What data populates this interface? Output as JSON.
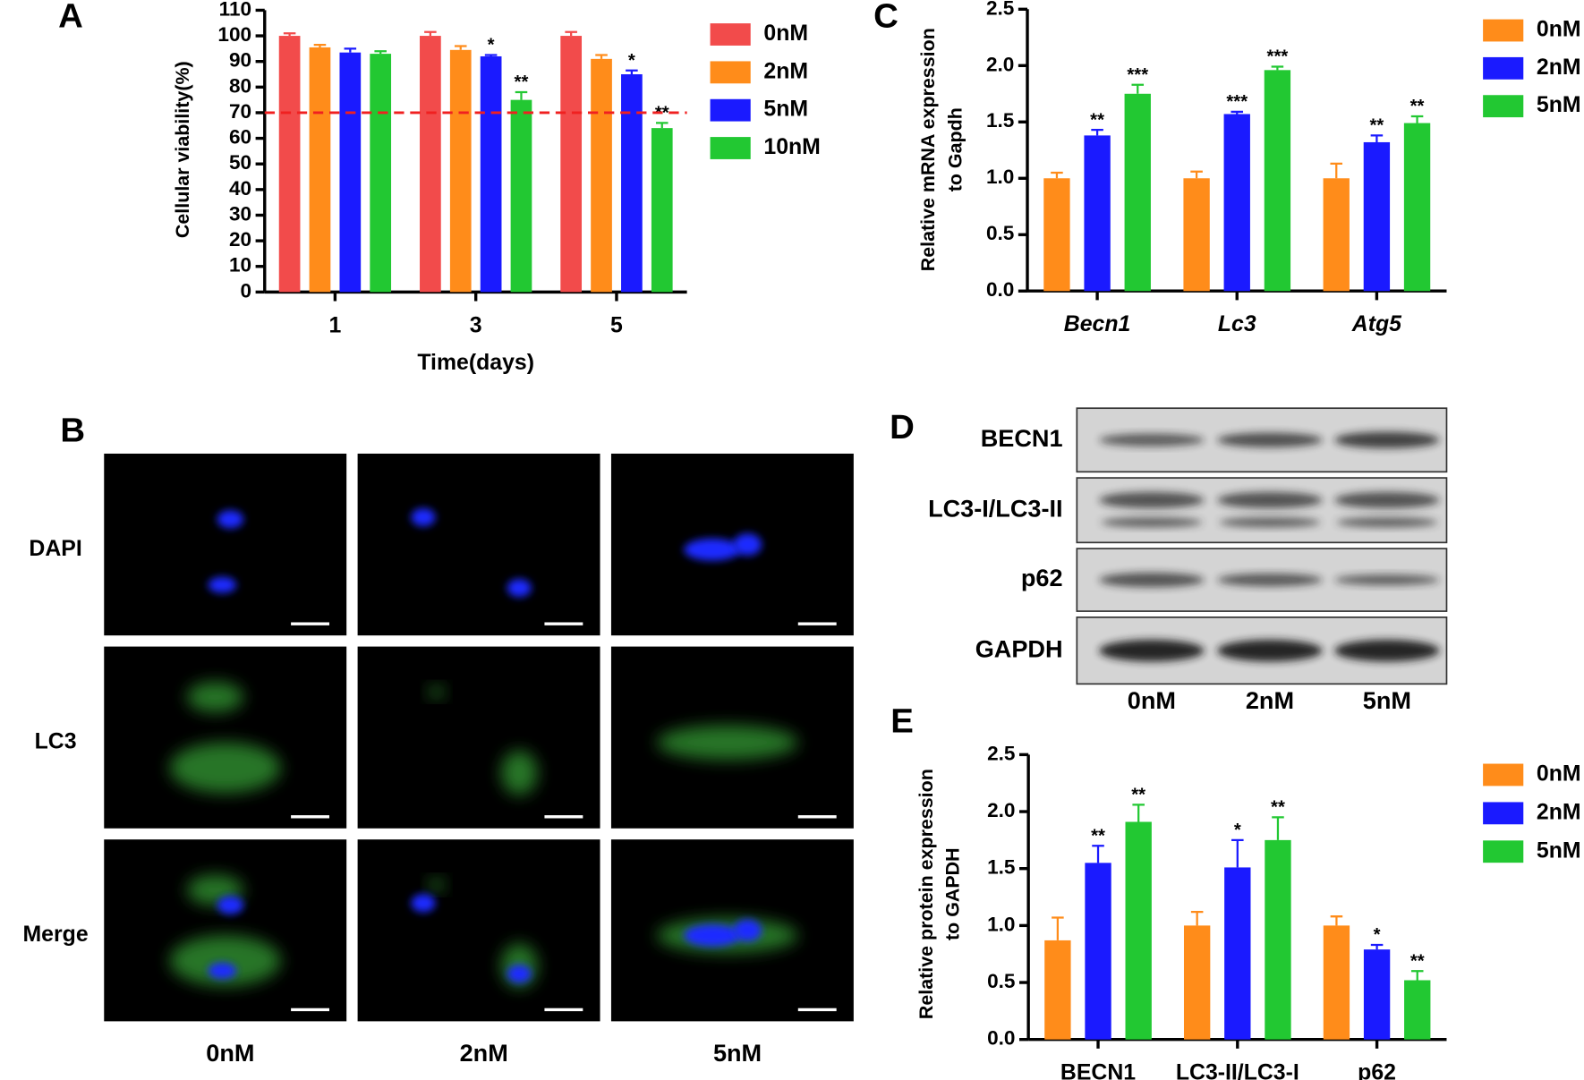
{
  "chart_data": [
    {
      "type": "bar",
      "panel": "A",
      "ylabel": [
        "Cellular viability(%)"
      ],
      "xlabel": "Time(days)",
      "categories": [
        "1",
        "3",
        "5"
      ],
      "series": [
        {
          "name": "0nM",
          "color": "#f24b4b",
          "values": [
            100,
            100,
            100
          ],
          "errors": [
            1,
            1.5,
            1.5
          ],
          "significance": [
            null,
            null,
            null
          ]
        },
        {
          "name": "2nM",
          "color": "#ff8c1a",
          "values": [
            95.5,
            94.5,
            91
          ],
          "errors": [
            1,
            1.5,
            1.5
          ],
          "significance": [
            null,
            null,
            null
          ]
        },
        {
          "name": "5nM",
          "color": "#1a1aff",
          "values": [
            93.5,
            92,
            85
          ],
          "errors": [
            1.5,
            0.5,
            1.5
          ],
          "significance": [
            null,
            "*",
            "*"
          ]
        },
        {
          "name": "10nM",
          "color": "#22c832",
          "values": [
            93,
            75,
            64
          ],
          "errors": [
            1,
            3,
            2
          ],
          "significance": [
            null,
            "**",
            "**"
          ]
        }
      ],
      "reference_line": 70,
      "reference_color": "#f02020",
      "ylim": [
        0,
        110
      ],
      "yticks": [
        0,
        10,
        20,
        30,
        40,
        50,
        60,
        70,
        80,
        90,
        100,
        110
      ]
    },
    {
      "type": "bar",
      "panel": "C",
      "ylabel": [
        "Relative mRNA expression",
        "to Gapdh"
      ],
      "italic_categories": true,
      "categories": [
        "Becn1",
        "Lc3",
        "Atg5"
      ],
      "series": [
        {
          "name": "0nM",
          "color": "#ff8c1a",
          "values": [
            1.0,
            1.0,
            1.0
          ],
          "errors": [
            0.05,
            0.06,
            0.13
          ],
          "significance": [
            null,
            null,
            null
          ]
        },
        {
          "name": "2nM",
          "color": "#1a1aff",
          "values": [
            1.38,
            1.57,
            1.32
          ],
          "errors": [
            0.05,
            0.02,
            0.06
          ],
          "significance": [
            "**",
            "***",
            "**"
          ]
        },
        {
          "name": "5nM",
          "color": "#22c832",
          "values": [
            1.75,
            1.96,
            1.49
          ],
          "errors": [
            0.08,
            0.03,
            0.06
          ],
          "significance": [
            "***",
            "***",
            "**"
          ]
        }
      ],
      "ylim": [
        0,
        2.5
      ],
      "yticks": [
        {
          "value": 0,
          "label": "0.0"
        },
        0.5,
        {
          "value": 1,
          "label": "1.0"
        },
        1.5,
        {
          "value": 2,
          "label": "2.0"
        },
        2.5
      ]
    },
    {
      "type": "bar",
      "panel": "E",
      "ylabel": [
        "Relative protein expression",
        "to GAPDH"
      ],
      "categories": [
        "BECN1",
        "LC3-II/LC3-I",
        "p62"
      ],
      "series": [
        {
          "name": "0nM",
          "color": "#ff8c1a",
          "values": [
            0.87,
            1.0,
            1.0
          ],
          "errors": [
            0.2,
            0.12,
            0.08
          ],
          "significance": [
            null,
            null,
            null
          ]
        },
        {
          "name": "2nM",
          "color": "#1a1aff",
          "values": [
            1.55,
            1.51,
            0.79
          ],
          "errors": [
            0.15,
            0.24,
            0.04
          ],
          "significance": [
            "**",
            "*",
            "*"
          ]
        },
        {
          "name": "5nM",
          "color": "#22c832",
          "values": [
            1.91,
            1.75,
            0.52
          ],
          "errors": [
            0.15,
            0.2,
            0.08
          ],
          "significance": [
            "**",
            "**",
            "**"
          ]
        }
      ],
      "ylim": [
        0,
        2.5
      ],
      "yticks": [
        {
          "value": 0,
          "label": "0.0"
        },
        0.5,
        {
          "value": 1,
          "label": "1.0"
        },
        1.5,
        {
          "value": 2,
          "label": "2.0"
        },
        2.5
      ]
    }
  ],
  "micrographs": {
    "panel": "B",
    "rows": [
      "DAPI",
      "LC3",
      "Merge"
    ],
    "columns": [
      "0nM",
      "2nM",
      "5nM"
    ]
  },
  "western_blot": {
    "panel": "D",
    "proteins": [
      "BECN1",
      "LC3-I/LC3-II",
      "p62",
      "GAPDH"
    ],
    "columns": [
      "0nM",
      "2nM",
      "5nM"
    ]
  }
}
